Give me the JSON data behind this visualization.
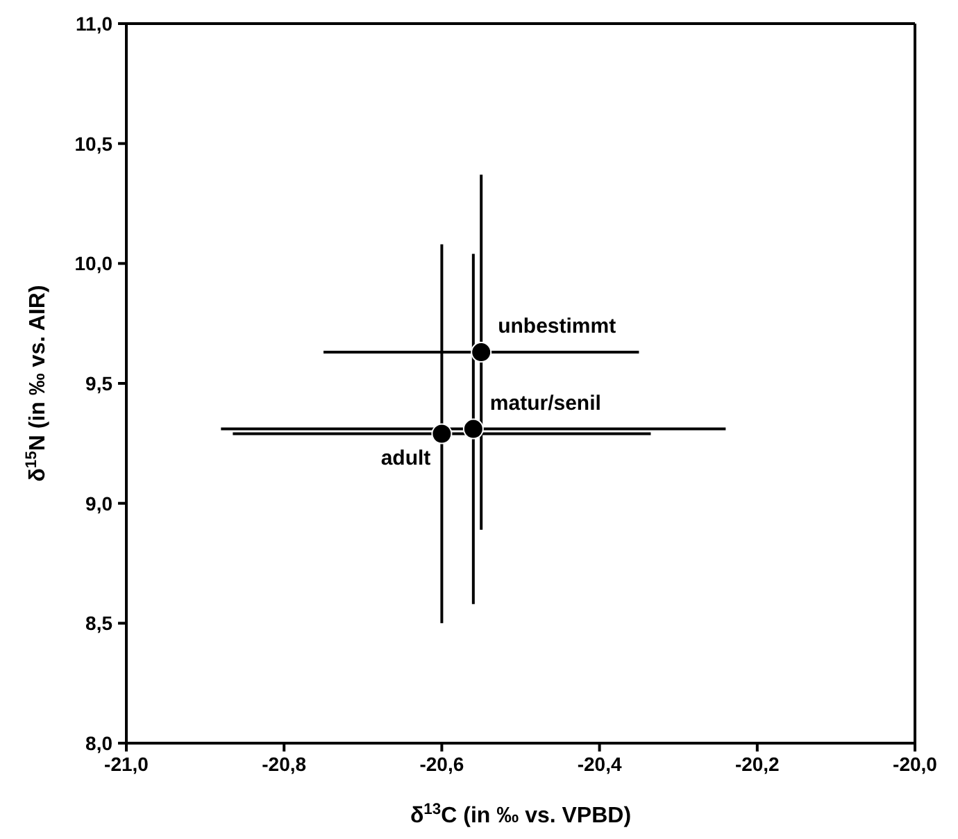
{
  "chart_data": {
    "type": "scatter",
    "xlabel": "δ$^{13}$C (in ‰ vs. VPBD)",
    "ylabel": "δ$^{15}$N (in ‰ vs. AIR)",
    "x": [
      -20.55,
      -20.56,
      -20.6
    ],
    "series": [
      {
        "color": "#000000",
        "values": [
          9.63,
          9.31,
          9.29
        ],
        "errors": [
          0.74,
          0.73,
          0.79
        ],
        "xerrors": [
          0.2,
          0.32,
          0.265
        ]
      }
    ],
    "marker": "circle",
    "grid": false,
    "legend": false,
    "xlim": [
      -21,
      -20
    ],
    "xticks": [
      {
        "value": -21,
        "label": "-21,0"
      },
      {
        "value": -20.8,
        "label": "-20,8"
      },
      {
        "value": -20.6,
        "label": "-20,6"
      },
      {
        "value": -20.4,
        "label": "-20,4"
      },
      {
        "value": -20.2,
        "label": "-20,2"
      },
      {
        "value": -20,
        "label": "-20,0"
      }
    ],
    "ylim": [
      8,
      11
    ],
    "yticks": [
      {
        "value": 8,
        "label": "8,0"
      },
      {
        "value": 8.5,
        "label": "8,5"
      },
      {
        "value": 9,
        "label": "9,0"
      },
      {
        "value": 9.5,
        "label": "9,5"
      },
      {
        "value": 10,
        "label": "10,0"
      },
      {
        "value": 10.5,
        "label": "10,5"
      },
      {
        "value": 11,
        "label": "11,0"
      }
    ],
    "annotations": [
      {
        "text": "unbestimmt",
        "x": -20.55,
        "y": 9.63
      },
      {
        "text": "matur/senil",
        "x": -20.56,
        "y": 9.31
      },
      {
        "text": "adult",
        "x": -20.6,
        "y": 9.29
      }
    ]
  }
}
